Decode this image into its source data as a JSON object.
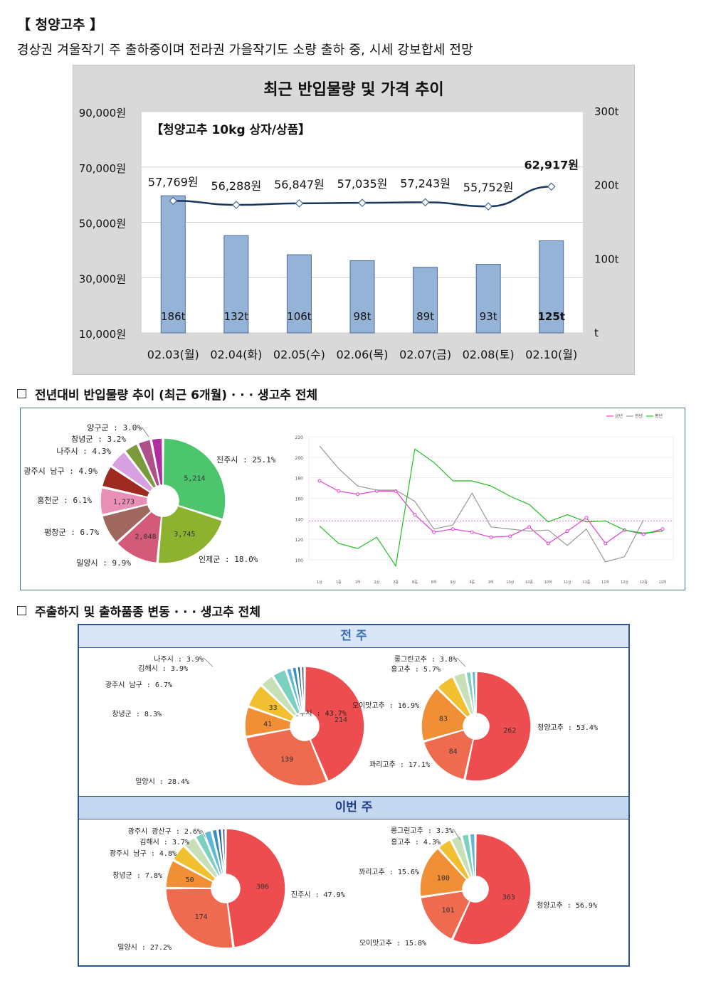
{
  "header": {
    "title": "【 청양고추 】",
    "subtitle": "경상권 겨울작기 주 출하중이며 전라권 가을작기도 소량 출하 중, 시세 강보합세 전망"
  },
  "sections": {
    "yoy": "전년대비 반입물량 추이 (최근 6개월) · · · 생고추 전체",
    "origin": "주출하지 및 출하품종 변동 · · · 생고추 전체"
  },
  "chart_data": [
    {
      "type": "bar",
      "title": "최근 반입물량 및 가격 추이",
      "subtitle": "【청양고추 10kg 상자/상품】",
      "categories": [
        "02.03(월)",
        "02.04(화)",
        "02.05(수)",
        "02.06(목)",
        "02.07(금)",
        "02.08(토)",
        "02.10(월)"
      ],
      "series": [
        {
          "kind": "bar",
          "axis": "right",
          "values": [
            186,
            132,
            106,
            98,
            89,
            93,
            125
          ],
          "labels": [
            "186t",
            "132t",
            "106t",
            "98t",
            "89t",
            "93t",
            "125t"
          ],
          "color": "#95b3d7"
        },
        {
          "kind": "line",
          "axis": "left",
          "values": [
            57769,
            56288,
            56847,
            57035,
            57243,
            55752,
            62917
          ],
          "labels": [
            "57,769원",
            "56,288원",
            "56,847원",
            "57,035원",
            "57,243원",
            "55,752원",
            "62,917원"
          ],
          "color": "#17375e"
        }
      ],
      "y_left": {
        "ticks": [
          "90,000원",
          "70,000원",
          "50,000원",
          "30,000원",
          "10,000원"
        ],
        "ylim": [
          10000,
          90000
        ]
      },
      "y_right": {
        "ticks": [
          "300t",
          "200t",
          "100t",
          "t"
        ],
        "ylim": [
          0,
          300
        ]
      },
      "grid": true
    },
    {
      "type": "pie",
      "values": [
        5214,
        3745,
        2048,
        null,
        1273,
        null,
        null,
        null,
        null,
        null
      ],
      "slices": [
        {
          "label": "진주시 : 25.1%",
          "pct": 25.1,
          "value": "5,214",
          "color": "#4dc56d"
        },
        {
          "label": "인제군 : 18.0%",
          "pct": 18.0,
          "value": "3,745",
          "color": "#8db22f"
        },
        {
          "label": "밀양시 : 9.9%",
          "pct": 9.9,
          "value": "2,048",
          "color": "#d45a7a"
        },
        {
          "label": "평창군 : 6.7%",
          "pct": 6.7,
          "value": "",
          "color": "#a0675e"
        },
        {
          "label": "홍천군 : 6.1%",
          "pct": 6.1,
          "value": "1,273",
          "color": "#e88fb5"
        },
        {
          "label": "광주시 남구 : 4.9%",
          "pct": 4.9,
          "value": "",
          "color": "#9e2a20"
        },
        {
          "label": "나주시 : 4.3%",
          "pct": 4.3,
          "value": "",
          "color": "#d8a0e0"
        },
        {
          "label": "창녕군 : 3.2%",
          "pct": 3.2,
          "value": "",
          "color": "#7a9a3c"
        },
        {
          "label": "양구군 : 3.0%",
          "pct": 3.0,
          "value": "",
          "color": "#b0508a"
        },
        {
          "label": "",
          "pct": 2.6,
          "value": "",
          "color": "#b02fa0"
        }
      ]
    },
    {
      "type": "line",
      "legend": [
        "금년",
        "전년",
        "평년"
      ],
      "legend_placement": "top-right",
      "x": [
        "1상",
        "1중",
        "1하",
        "2상",
        "2중",
        "8중",
        "8하",
        "9상",
        "9중",
        "9하",
        "10상",
        "10중",
        "10하",
        "11상",
        "11중",
        "11하",
        "12상",
        "12중",
        "12하"
      ],
      "yticks": [
        "220",
        "200",
        "180",
        "160",
        "140",
        "120",
        "100"
      ],
      "ylim": [
        100,
        220
      ],
      "series": [
        {
          "name": "금년",
          "color": "#e040d0",
          "values": [
            177,
            167,
            164,
            167,
            167,
            144,
            127,
            130,
            127,
            122,
            123,
            132,
            116,
            128,
            141,
            116,
            129,
            125,
            130
          ]
        },
        {
          "name": "전년",
          "color": "#999999",
          "values": [
            211,
            189,
            172,
            168,
            168,
            157,
            130,
            134,
            165,
            132,
            130,
            128,
            129,
            114,
            130,
            98,
            103,
            139,
            null
          ]
        },
        {
          "name": "평년",
          "color": "#20c020",
          "values": [
            133,
            116,
            111,
            122,
            94,
            208,
            195,
            177,
            177,
            172,
            162,
            154,
            137,
            144,
            137,
            138,
            129,
            126,
            128
          ]
        }
      ],
      "reference_line": 138
    },
    {
      "type": "pie",
      "group": "전 주",
      "slices": [
        {
          "label": "진주시 : 43.7%",
          "pct": 43.7,
          "value": "214",
          "color": "#ee4d50"
        },
        {
          "label": "밀양시 : 28.4%",
          "pct": 28.4,
          "value": "139",
          "color": "#ef6b4f"
        },
        {
          "label": "창녕군 : 8.3%",
          "pct": 8.3,
          "value": "41",
          "color": "#f08f35"
        },
        {
          "label": "광주시 남구 : 6.7%",
          "pct": 6.7,
          "value": "33",
          "color": "#f0c030"
        },
        {
          "label": "김해시 : 3.9%",
          "pct": 3.9,
          "value": "",
          "color": "#c8e0b8"
        },
        {
          "label": "나주시 : 3.9%",
          "pct": 3.9,
          "value": "",
          "color": "#7cd0c0"
        },
        {
          "label": "",
          "pct": 1.6,
          "value": "",
          "color": "#5eb8d8"
        },
        {
          "label": "",
          "pct": 1.4,
          "value": "",
          "color": "#3d8ec0"
        },
        {
          "label": "",
          "pct": 1.1,
          "value": "",
          "color": "#1f5f8a"
        },
        {
          "label": "",
          "pct": 1.0,
          "value": "",
          "color": "#2a3f7a"
        }
      ]
    },
    {
      "type": "pie",
      "group": "전 주",
      "slices": [
        {
          "label": "청양고추 : 53.4%",
          "pct": 53.4,
          "value": "262",
          "color": "#ee4d50"
        },
        {
          "label": "꽈리고추 : 17.1%",
          "pct": 17.1,
          "value": "84",
          "color": "#ef6b4f"
        },
        {
          "label": "오이맛고추 : 16.9%",
          "pct": 16.9,
          "value": "83",
          "color": "#f08f35"
        },
        {
          "label": "홍고추 : 5.7%",
          "pct": 5.7,
          "value": "",
          "color": "#f0c030"
        },
        {
          "label": "롱그린고추 : 3.8%",
          "pct": 3.8,
          "value": "",
          "color": "#c8e0b8"
        },
        {
          "label": "",
          "pct": 1.7,
          "value": "",
          "color": "#7cd0c0"
        },
        {
          "label": "",
          "pct": 1.4,
          "value": "",
          "color": "#5eb8d8"
        }
      ]
    },
    {
      "type": "pie",
      "group": "이번 주",
      "slices": [
        {
          "label": "진주시 : 47.9%",
          "pct": 47.9,
          "value": "306",
          "color": "#ee4d50"
        },
        {
          "label": "밀양시 : 27.2%",
          "pct": 27.2,
          "value": "174",
          "color": "#ef6b4f"
        },
        {
          "label": "창녕군 : 7.8%",
          "pct": 7.8,
          "value": "50",
          "color": "#f08f35"
        },
        {
          "label": "광주시 남구 : 4.8%",
          "pct": 4.8,
          "value": "",
          "color": "#f0c030"
        },
        {
          "label": "김해시 : 3.7%",
          "pct": 3.7,
          "value": "",
          "color": "#c8e0b8"
        },
        {
          "label": "광주시 광산구 : 2.6%",
          "pct": 2.6,
          "value": "",
          "color": "#7cd0c0"
        },
        {
          "label": "",
          "pct": 2.2,
          "value": "",
          "color": "#5eb8d8"
        },
        {
          "label": "",
          "pct": 1.6,
          "value": "",
          "color": "#3d8ec0"
        },
        {
          "label": "",
          "pct": 1.2,
          "value": "",
          "color": "#1f5f8a"
        },
        {
          "label": "",
          "pct": 1.0,
          "value": "",
          "color": "#2a3f7a"
        }
      ]
    },
    {
      "type": "pie",
      "group": "이번 주",
      "slices": [
        {
          "label": "청양고추 : 56.9%",
          "pct": 56.9,
          "value": "363",
          "color": "#ee4d50"
        },
        {
          "label": "오이맛고추 : 15.8%",
          "pct": 15.8,
          "value": "101",
          "color": "#ef6b4f"
        },
        {
          "label": "꽈리고추 : 15.6%",
          "pct": 15.6,
          "value": "100",
          "color": "#f08f35"
        },
        {
          "label": "홍고추 : 4.3%",
          "pct": 4.3,
          "value": "",
          "color": "#f0c030"
        },
        {
          "label": "롱그린고추 : 3.3%",
          "pct": 3.3,
          "value": "",
          "color": "#c8e0b8"
        },
        {
          "label": "",
          "pct": 2.3,
          "value": "",
          "color": "#7cd0c0"
        },
        {
          "label": "",
          "pct": 1.8,
          "value": "",
          "color": "#5eb8d8"
        }
      ]
    }
  ],
  "weekly": {
    "prev_label": "전 주",
    "this_label": "이번 주"
  }
}
